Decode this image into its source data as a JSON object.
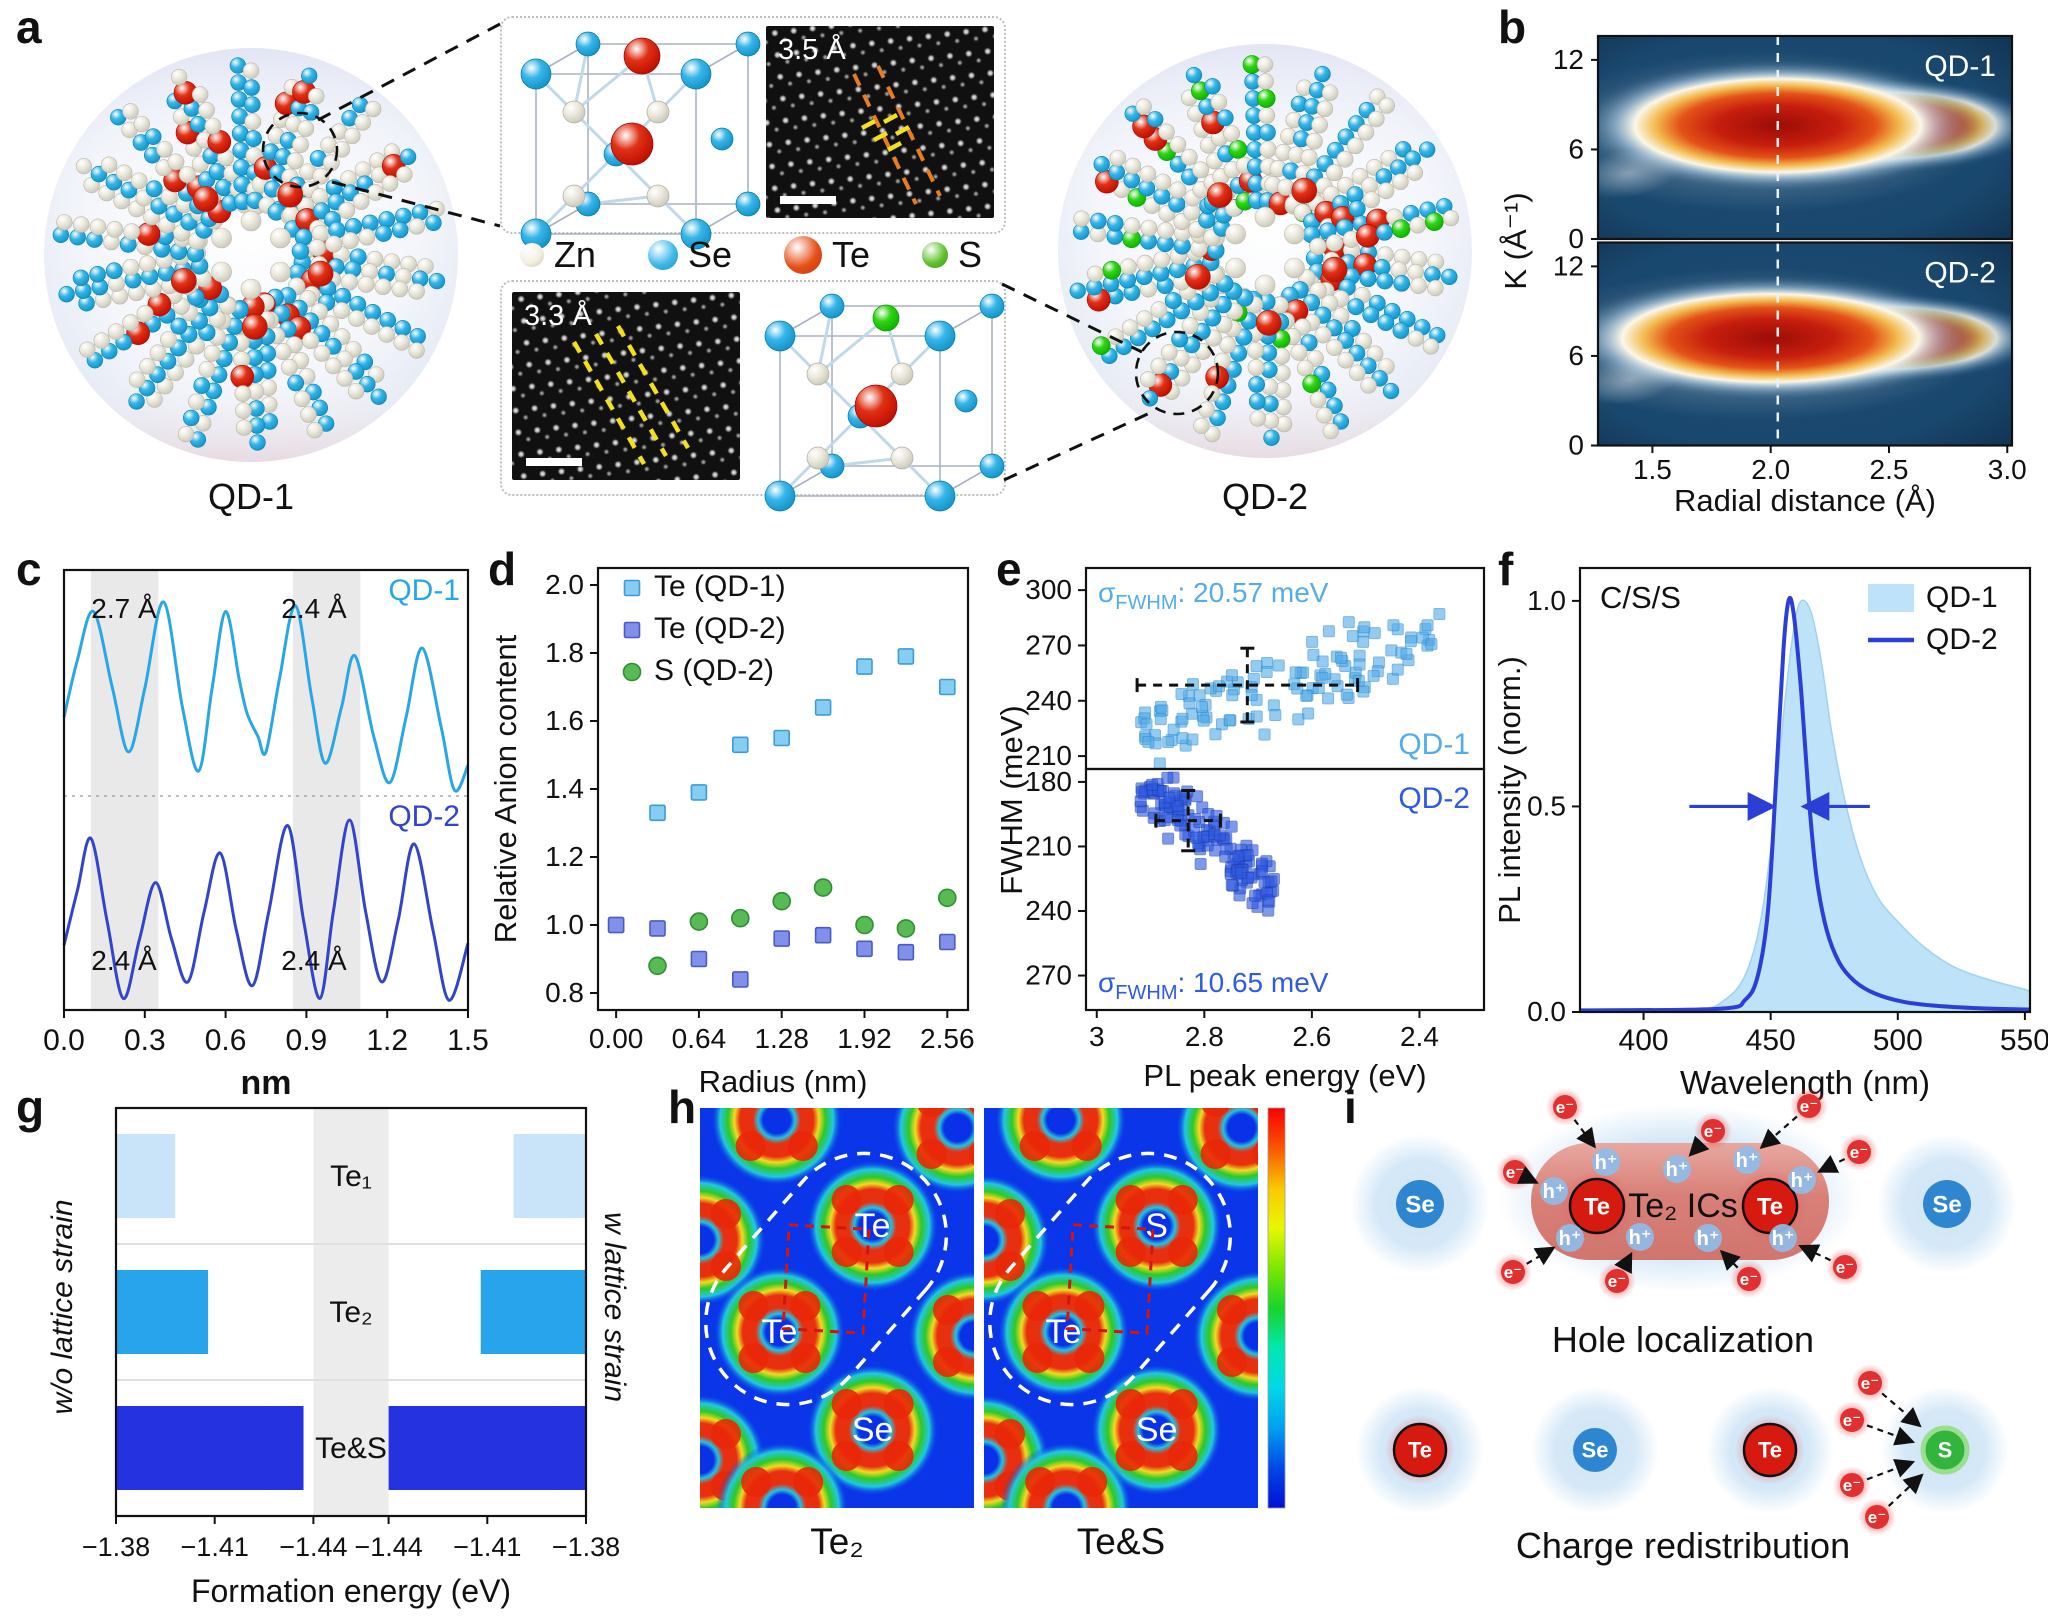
{
  "panel_labels": {
    "a": "a",
    "b": "b",
    "c": "c",
    "d": "d",
    "e": "e",
    "f": "f",
    "g": "g",
    "h": "h",
    "i": "i"
  },
  "panel_a": {
    "qd1_label": "QD-1",
    "qd2_label": "QD-2",
    "legend": [
      {
        "name": "Zn",
        "color": "#F3EFE1",
        "edge": "#C8C3B2",
        "size": 24
      },
      {
        "name": "Se",
        "color": "#3FB9E8",
        "edge": "#1E8FC0",
        "size": 30
      },
      {
        "name": "Te",
        "color": "#E64E16",
        "edge": "#C23608",
        "size": 38
      },
      {
        "name": "S",
        "color": "#60C22E",
        "edge": "#3A9A12",
        "size": 26
      }
    ],
    "inset_top": {
      "scale_label": "3.5 Å"
    },
    "inset_bottom": {
      "scale_label": "3.3 Å"
    },
    "atom_colors": {
      "zn": "#ECE9DD",
      "se": "#35B5E8",
      "te": "#E03014",
      "s": "#2FD414"
    },
    "sphere_qd1": {
      "seed": 7,
      "species": [
        "zn",
        "se",
        "te"
      ],
      "spokes": 18,
      "r_in": 48,
      "r_out": 198,
      "step": 17
    },
    "sphere_qd2": {
      "seed": 13,
      "species": [
        "zn",
        "se",
        "te",
        "s"
      ],
      "spokes": 18,
      "r_in": 48,
      "r_out": 198,
      "step": 17
    }
  },
  "chart_data": {
    "b": {
      "type": "heatmap",
      "xlabel": "Radial distance (Å)",
      "ylabel": "K (Å⁻¹)",
      "x_ticks": [
        "1.5",
        "2.0",
        "2.5",
        "3.0"
      ],
      "x_tick_vals": [
        1.5,
        2.0,
        2.5,
        3.0
      ],
      "y_ticks": [
        12,
        6,
        0
      ],
      "x_range": [
        1.27,
        3.02
      ],
      "y_range": [
        0,
        13.6
      ],
      "dashed_line_x": 2.03,
      "panels": [
        {
          "label": "QD-1",
          "blob": {
            "cx": 2.03,
            "cy": 7.6,
            "rx": 0.54,
            "ry": 3.5
          }
        },
        {
          "label": "QD-2",
          "blob": {
            "cx": 2.0,
            "cy": 7.2,
            "rx": 0.56,
            "ry": 3.3
          }
        }
      ],
      "bg_color": "#1B4C74"
    },
    "c": {
      "type": "line",
      "xlabel": "nm",
      "x_ticks": [
        "0.0",
        "0.3",
        "0.6",
        "0.9",
        "1.2",
        "1.5"
      ],
      "x_tick_vals": [
        0,
        0.3,
        0.6,
        0.9,
        1.2,
        1.5
      ],
      "x_range": [
        0,
        1.5
      ],
      "bands": [
        [
          0.1,
          0.35
        ],
        [
          0.85,
          1.1
        ]
      ],
      "annotations_top": [
        "2.7 Å",
        "2.4 Å"
      ],
      "annotations_bottom": [
        "2.4 Å",
        "2.4 Å"
      ],
      "series": [
        {
          "name": "QD-1",
          "color": "#29A7E5",
          "points": [
            [
              0,
              0.4
            ],
            [
              0.05,
              0.7
            ],
            [
              0.11,
              0.95
            ],
            [
              0.18,
              0.55
            ],
            [
              0.24,
              0.22
            ],
            [
              0.3,
              0.55
            ],
            [
              0.37,
              1.0
            ],
            [
              0.44,
              0.45
            ],
            [
              0.5,
              0.12
            ],
            [
              0.55,
              0.55
            ],
            [
              0.6,
              0.95
            ],
            [
              0.65,
              0.6
            ],
            [
              0.68,
              0.42
            ],
            [
              0.72,
              0.3
            ],
            [
              0.75,
              0.22
            ],
            [
              0.8,
              0.6
            ],
            [
              0.86,
              0.98
            ],
            [
              0.92,
              0.5
            ],
            [
              0.97,
              0.16
            ],
            [
              1.03,
              0.45
            ],
            [
              1.08,
              0.72
            ],
            [
              1.15,
              0.3
            ],
            [
              1.21,
              0.06
            ],
            [
              1.27,
              0.4
            ],
            [
              1.33,
              0.76
            ],
            [
              1.4,
              0.35
            ],
            [
              1.45,
              0.02
            ],
            [
              1.5,
              0.15
            ]
          ]
        },
        {
          "name": "QD-2",
          "color": "#3245C8",
          "points": [
            [
              0,
              0.32
            ],
            [
              0.05,
              0.62
            ],
            [
              0.1,
              0.9
            ],
            [
              0.16,
              0.45
            ],
            [
              0.22,
              0.03
            ],
            [
              0.28,
              0.35
            ],
            [
              0.34,
              0.66
            ],
            [
              0.4,
              0.35
            ],
            [
              0.46,
              0.12
            ],
            [
              0.52,
              0.5
            ],
            [
              0.58,
              0.82
            ],
            [
              0.64,
              0.4
            ],
            [
              0.7,
              0.1
            ],
            [
              0.76,
              0.5
            ],
            [
              0.83,
              0.97
            ],
            [
              0.89,
              0.45
            ],
            [
              0.95,
              0.03
            ],
            [
              1.0,
              0.5
            ],
            [
              1.06,
              1.0
            ],
            [
              1.12,
              0.5
            ],
            [
              1.18,
              0.12
            ],
            [
              1.24,
              0.45
            ],
            [
              1.3,
              0.87
            ],
            [
              1.37,
              0.4
            ],
            [
              1.43,
              0.02
            ],
            [
              1.5,
              0.33
            ]
          ]
        }
      ]
    },
    "d": {
      "type": "scatter",
      "xlabel": "Radius (nm)",
      "ylabel": "Relative Anion content",
      "x_ticks": [
        "0.00",
        "0.64",
        "1.28",
        "1.92",
        "2.56"
      ],
      "x_tick_vals": [
        0,
        0.64,
        1.28,
        1.92,
        2.56
      ],
      "y_ticks": [
        "0.8",
        "1.0",
        "1.2",
        "1.4",
        "1.6",
        "1.8",
        "2.0"
      ],
      "y_tick_vals": [
        0.8,
        1.0,
        1.2,
        1.4,
        1.6,
        1.8,
        2.0
      ],
      "x_range": [
        -0.14,
        2.72
      ],
      "y_range": [
        0.75,
        2.05
      ],
      "series": [
        {
          "name": "Te (QD-1)",
          "marker": "square",
          "fill": "#85CDF2",
          "stroke": "#3E9BD6",
          "points": [
            [
              0,
              1.0
            ],
            [
              0.32,
              1.33
            ],
            [
              0.64,
              1.39
            ],
            [
              0.96,
              1.53
            ],
            [
              1.28,
              1.55
            ],
            [
              1.6,
              1.64
            ],
            [
              1.92,
              1.76
            ],
            [
              2.24,
              1.79
            ],
            [
              2.56,
              1.7
            ]
          ]
        },
        {
          "name": "Te (QD-2)",
          "marker": "square",
          "fill": "#8190E8",
          "stroke": "#4A5BC8",
          "points": [
            [
              0,
              1.0
            ],
            [
              0.32,
              0.99
            ],
            [
              0.64,
              0.9
            ],
            [
              0.96,
              0.84
            ],
            [
              1.28,
              0.96
            ],
            [
              1.6,
              0.97
            ],
            [
              1.92,
              0.93
            ],
            [
              2.24,
              0.92
            ],
            [
              2.56,
              0.95
            ]
          ]
        },
        {
          "name": "S  (QD-2)",
          "marker": "circle",
          "fill": "#58BA52",
          "stroke": "#2E8F35",
          "points": [
            [
              0.32,
              0.88
            ],
            [
              0.64,
              1.01
            ],
            [
              0.96,
              1.02
            ],
            [
              1.28,
              1.07
            ],
            [
              1.6,
              1.11
            ],
            [
              1.92,
              1.0
            ],
            [
              2.24,
              0.99
            ],
            [
              2.56,
              1.08
            ]
          ]
        }
      ]
    },
    "e": {
      "type": "scatter-cloud",
      "xlabel": "PL peak energy (eV)",
      "ylabel": "FWHM (meV)",
      "x_ticks": [
        "3",
        "2.8",
        "2.6",
        "2.4"
      ],
      "x_tick_vals": [
        3.0,
        2.8,
        2.6,
        2.4
      ],
      "x_range": [
        3.02,
        2.28
      ],
      "panels": [
        {
          "label": "QD-1",
          "color": "#54ACE8",
          "stroke": "#2E8BD0",
          "sigma": {
            "prefix": "σ",
            "sub": "FWHM",
            "rest": ": 20.57 meV"
          },
          "y_ticks": [
            300,
            270,
            240,
            210
          ],
          "y_range": [
            203,
            312
          ],
          "inverted": false,
          "cloud": {
            "seed": 42,
            "n": 118,
            "x_min": 2.34,
            "x_span": 0.58,
            "x_pow": 0.85,
            "a": 219,
            "b": 105,
            "x0": 2.92,
            "noise": 26,
            "y_clamp": [
              206,
              298
            ]
          },
          "cross": {
            "cx": 2.72,
            "cy": 248.5,
            "hx": 0.205,
            "hy": 20
          }
        },
        {
          "label": "QD-2",
          "color": "#2F5BE0",
          "stroke": "#1F3FB8",
          "sigma": {
            "prefix": "σ",
            "sub": "FWHM",
            "rest": ": 10.65 meV"
          },
          "y_ticks": [
            180,
            210,
            240,
            270
          ],
          "y_range": [
            174,
            286
          ],
          "inverted": true,
          "cloud": {
            "seed": 9,
            "n": 140,
            "x_min": 2.67,
            "x_span": 0.25,
            "x_pow": 0.9,
            "a": 182,
            "b": 192,
            "x0": 2.92,
            "noise": 18,
            "y_clamp": [
              178,
              252
            ]
          },
          "cross": {
            "cx": 2.83,
            "cy": 198,
            "hx": 0.06,
            "hy": 14
          }
        }
      ]
    },
    "f": {
      "type": "area-line",
      "xlabel": "Wavelength (nm)",
      "ylabel": "PL intensity (norm.)",
      "annotation": "C/S/S",
      "x_ticks": [
        "400",
        "450",
        "500",
        "550"
      ],
      "x_tick_vals": [
        400,
        450,
        500,
        550
      ],
      "y_ticks": [
        "1.0",
        "0.5",
        "0.0"
      ],
      "y_tick_vals": [
        1.0,
        0.5,
        0.0
      ],
      "x_range": [
        375,
        552
      ],
      "y_range": [
        0,
        1.08
      ],
      "arrow_y": 0.5,
      "arrows": [
        {
          "from": 418,
          "to": 451
        },
        {
          "from": 489,
          "to": 463
        }
      ],
      "series": [
        {
          "name": "QD-1",
          "type": "area",
          "fill": "#BEE2F7",
          "edge": "#A0D2F0",
          "points": [
            [
              375,
              0
            ],
            [
              420,
              0.005
            ],
            [
              432,
              0.03
            ],
            [
              440,
              0.09
            ],
            [
              446,
              0.22
            ],
            [
              451,
              0.45
            ],
            [
              455,
              0.72
            ],
            [
              459,
              0.93
            ],
            [
              462,
              1.0
            ],
            [
              466,
              0.97
            ],
            [
              470,
              0.85
            ],
            [
              474,
              0.68
            ],
            [
              479,
              0.52
            ],
            [
              485,
              0.38
            ],
            [
              492,
              0.28
            ],
            [
              500,
              0.22
            ],
            [
              510,
              0.16
            ],
            [
              522,
              0.11
            ],
            [
              535,
              0.08
            ],
            [
              550,
              0.055
            ]
          ]
        },
        {
          "name": "QD-2",
          "type": "line",
          "color": "#2B3FD6",
          "points": [
            [
              375,
              0.004
            ],
            [
              430,
              0.008
            ],
            [
              440,
              0.03
            ],
            [
              445,
              0.09
            ],
            [
              449,
              0.25
            ],
            [
              452,
              0.55
            ],
            [
              455,
              0.88
            ],
            [
              457,
              1.0
            ],
            [
              459,
              0.97
            ],
            [
              462,
              0.78
            ],
            [
              465,
              0.52
            ],
            [
              468,
              0.33
            ],
            [
              472,
              0.2
            ],
            [
              477,
              0.12
            ],
            [
              483,
              0.075
            ],
            [
              491,
              0.045
            ],
            [
              502,
              0.025
            ],
            [
              515,
              0.015
            ],
            [
              532,
              0.009
            ],
            [
              550,
              0.006
            ]
          ]
        }
      ]
    },
    "g": {
      "type": "butterfly-bar",
      "xlabel": "Formation energy (eV)",
      "left_axis_label": "w/o lattice strain",
      "right_axis_label": "w lattice strain",
      "ticks": [
        "−1.38",
        "−1.41",
        "−1.44"
      ],
      "tick_vals": [
        1.38,
        1.41,
        1.44
      ],
      "value_range": [
        1.38,
        1.44
      ],
      "rows": [
        {
          "label": "Te₁",
          "color": "#C9E4F8",
          "left": 1.398,
          "right": 1.402
        },
        {
          "label": "Te₂",
          "color": "#27A4EC",
          "left": 1.408,
          "right": 1.412
        },
        {
          "label": "Te&S",
          "color": "#2433DF",
          "left": 1.437,
          "right": 1.44
        }
      ]
    },
    "h": {
      "type": "density-map",
      "maps": [
        {
          "label": "Te₂",
          "atom_labels": {
            "3": "Te",
            "4": "Te",
            "6": "Se"
          }
        },
        {
          "label": "Te&S",
          "atom_labels": {
            "3": "S",
            "4": "Te",
            "6": "Se"
          }
        }
      ],
      "blob_positions": [
        [
          0.28,
          0.03
        ],
        [
          0.94,
          0.05
        ],
        [
          0.0,
          0.33
        ],
        [
          0.63,
          0.295
        ],
        [
          0.29,
          0.56
        ],
        [
          1.0,
          0.57
        ],
        [
          0.63,
          0.805
        ],
        [
          0.0,
          0.88
        ],
        [
          0.3,
          1.0
        ]
      ],
      "highlight_atoms": [
        3,
        4
      ],
      "bg_color": "#0A35E8",
      "colorbar": [
        "#FA0000",
        "#FA5500",
        "#FAC800",
        "#E8F800",
        "#7CE800",
        "#18D428",
        "#00E8B0",
        "#00D8E8",
        "#00A0F0",
        "#0048E8",
        "#0010D8"
      ]
    }
  },
  "panel_i": {
    "colors": {
      "se": "#2E86D0",
      "te": "#D61A10",
      "s": "#33B43C",
      "halo": "#D2E6F6",
      "capsule": "#DD8077",
      "h_badge": "#8FBCE8",
      "e_badge": "#E23030"
    },
    "top": {
      "left_atom": "Se",
      "right_atom": "Se",
      "te_label": "Te",
      "ic_label": "Te₂ ICs",
      "caption": "Hole localization",
      "h_plus_symbol": "h⁺",
      "e_minus_symbol": "e⁻",
      "h_plus": [
        [
          250,
          76
        ],
        [
          321,
          83
        ],
        [
          391,
          74
        ],
        [
          446,
          94
        ],
        [
          198,
          105
        ],
        [
          214,
          152
        ],
        [
          284,
          151
        ],
        [
          352,
          152
        ],
        [
          427,
          152
        ]
      ],
      "e_minus": [
        [
          209,
          21
        ],
        [
          357,
          45
        ],
        [
          453,
          20
        ],
        [
          503,
          66
        ],
        [
          159,
          86
        ],
        [
          157,
          186
        ],
        [
          261,
          195
        ],
        [
          393,
          193
        ],
        [
          489,
          181
        ]
      ]
    },
    "bottom": {
      "atoms": [
        "Te",
        "Se",
        "Te",
        "S"
      ],
      "caption": "Charge redistribution",
      "e_minus_symbol": "e⁻",
      "e_minus": [
        [
          514,
          297
        ],
        [
          496,
          334
        ],
        [
          496,
          399
        ],
        [
          521,
          431
        ]
      ],
      "arrow_tips": [
        [
          564,
          340
        ],
        [
          557,
          356
        ],
        [
          557,
          376
        ],
        [
          566,
          389
        ]
      ]
    }
  }
}
